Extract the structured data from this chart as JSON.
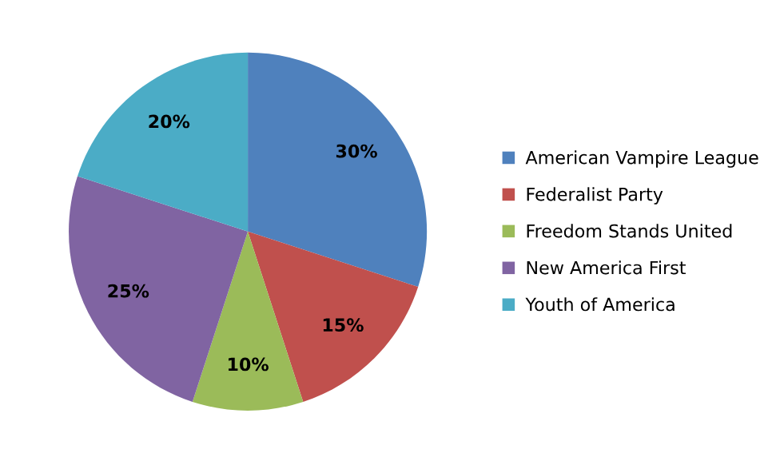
{
  "chart_data": {
    "type": "pie",
    "categories": [
      "American Vampire League",
      "Federalist Party",
      "Freedom Stands United",
      "New America First",
      "Youth of America"
    ],
    "values": [
      30,
      15,
      10,
      25,
      20
    ],
    "colors": [
      "#4f81bd",
      "#c0504d",
      "#9bbb59",
      "#8064a2",
      "#4bacc6"
    ],
    "value_labels": [
      "30%",
      "15%",
      "10%",
      "25%",
      "20%"
    ],
    "legend": "right"
  }
}
